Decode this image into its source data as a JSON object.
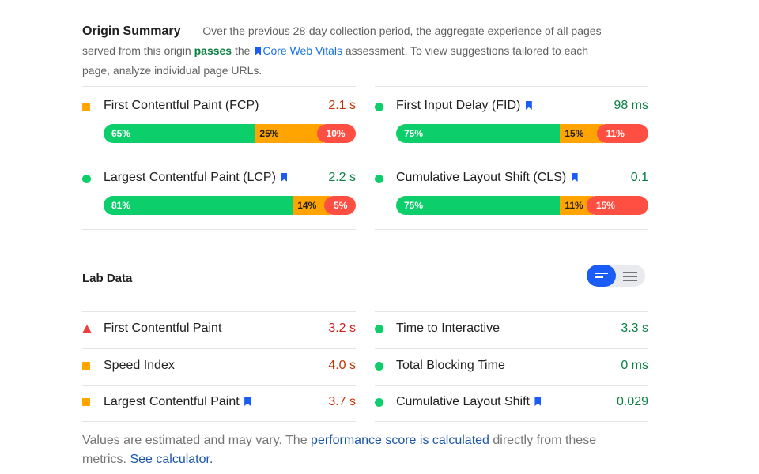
{
  "summary": {
    "title": "Origin Summary",
    "dash": "—",
    "text_before": "Over the previous 28-day collection period, the aggregate experience of all pages served from this origin",
    "passes": "passes",
    "the": "the",
    "cwv": "Core Web Vitals",
    "text_after": "assessment. To view suggestions tailored to each page, analyze individual page URLs."
  },
  "field_metrics": [
    {
      "label": "First Contentful Paint (FCP)",
      "value": "2.1 s",
      "status": "average",
      "good": "65%",
      "avg": "25%",
      "poor": "10%",
      "good_frac": 0.65,
      "avg_frac": 0.25,
      "poor_frac": 0.1
    },
    {
      "label": "First Input Delay (FID)",
      "value": "98 ms",
      "status": "good",
      "good": "75%",
      "avg": "15%",
      "poor": "11%",
      "good_frac": 0.75,
      "avg_frac": 0.15,
      "poor_frac": 0.11
    },
    {
      "label": "Largest Contentful Paint (LCP)",
      "value": "2.2 s",
      "status": "good",
      "good": "81%",
      "avg": "14%",
      "poor": "5%",
      "good_frac": 0.81,
      "avg_frac": 0.14,
      "poor_frac": 0.05
    },
    {
      "label": "Cumulative Layout Shift (CLS)",
      "value": "0.1",
      "status": "good",
      "good": "75%",
      "avg": "11%",
      "poor": "15%",
      "good_frac": 0.75,
      "avg_frac": 0.11,
      "poor_frac": 0.15
    }
  ],
  "lab": {
    "title": "Lab Data",
    "metrics": [
      {
        "label": "First Contentful Paint",
        "value": "3.2 s",
        "status": "poor"
      },
      {
        "label": "Time to Interactive",
        "value": "3.3 s",
        "status": "good"
      },
      {
        "label": "Speed Index",
        "value": "4.0 s",
        "status": "average"
      },
      {
        "label": "Total Blocking Time",
        "value": "0 ms",
        "status": "good"
      },
      {
        "label": "Largest Contentful Paint",
        "value": "3.7 s",
        "status": "average"
      },
      {
        "label": "Cumulative Layout Shift",
        "value": "0.029",
        "status": "good"
      }
    ]
  },
  "footer": {
    "text1": "Values are estimated and may vary. The",
    "link1": "performance score is calculated",
    "text2": "directly from these metrics.",
    "link2": "See calculator."
  },
  "colors": {
    "good": "#0cce6b",
    "average": "#ffa400",
    "poor": "#ff4e42",
    "accent": "#1a5cf5"
  }
}
